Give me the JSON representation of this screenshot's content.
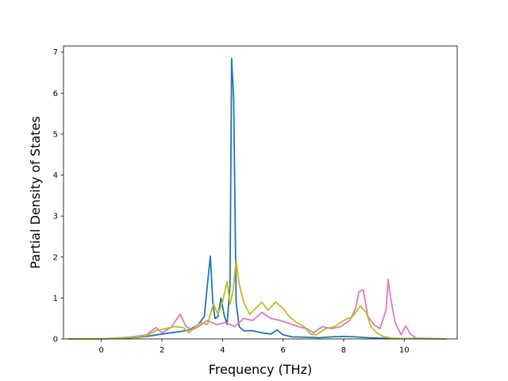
{
  "chart_data": {
    "type": "line",
    "title": "",
    "xlabel": "Frequency (THz)",
    "ylabel": "Partial Density of States",
    "xlim": [
      -1.25,
      11.75
    ],
    "ylim": [
      0,
      7.15
    ],
    "xticks": [
      0,
      2,
      4,
      6,
      8,
      10
    ],
    "yticks": [
      0,
      1,
      2,
      3,
      4,
      5,
      6,
      7
    ],
    "grid": false,
    "legend": "none",
    "series": [
      {
        "color": "#1f77b4",
        "points": [
          [
            -1.1,
            0
          ],
          [
            0,
            0
          ],
          [
            0.5,
            0.01
          ],
          [
            1,
            0.03
          ],
          [
            1.5,
            0.06
          ],
          [
            2,
            0.12
          ],
          [
            2.3,
            0.15
          ],
          [
            2.6,
            0.18
          ],
          [
            2.9,
            0.22
          ],
          [
            3.2,
            0.35
          ],
          [
            3.4,
            0.55
          ],
          [
            3.5,
            1.3
          ],
          [
            3.6,
            2.02
          ],
          [
            3.68,
            0.9
          ],
          [
            3.75,
            0.5
          ],
          [
            3.85,
            0.55
          ],
          [
            3.95,
            1.0
          ],
          [
            4.05,
            0.6
          ],
          [
            4.15,
            0.35
          ],
          [
            4.25,
            1.3
          ],
          [
            4.3,
            6.85
          ],
          [
            4.37,
            5.85
          ],
          [
            4.45,
            0.9
          ],
          [
            4.55,
            0.3
          ],
          [
            4.7,
            0.2
          ],
          [
            5.0,
            0.2
          ],
          [
            5.3,
            0.15
          ],
          [
            5.6,
            0.12
          ],
          [
            5.8,
            0.22
          ],
          [
            6.0,
            0.1
          ],
          [
            6.3,
            0.05
          ],
          [
            6.8,
            0.04
          ],
          [
            7.2,
            0.03
          ],
          [
            7.6,
            0.05
          ],
          [
            8.0,
            0.06
          ],
          [
            8.4,
            0.05
          ],
          [
            8.8,
            0.03
          ],
          [
            9.2,
            0.02
          ],
          [
            9.6,
            0.01
          ],
          [
            10.2,
            0.01
          ],
          [
            11.4,
            0
          ]
        ]
      },
      {
        "color": "#e377c2",
        "points": [
          [
            -1.1,
            0
          ],
          [
            0,
            0
          ],
          [
            0.5,
            0.02
          ],
          [
            1,
            0.05
          ],
          [
            1.5,
            0.1
          ],
          [
            1.8,
            0.28
          ],
          [
            2.0,
            0.15
          ],
          [
            2.3,
            0.28
          ],
          [
            2.6,
            0.6
          ],
          [
            2.8,
            0.3
          ],
          [
            3.0,
            0.22
          ],
          [
            3.2,
            0.3
          ],
          [
            3.5,
            0.45
          ],
          [
            3.8,
            0.35
          ],
          [
            4.1,
            0.4
          ],
          [
            4.4,
            0.3
          ],
          [
            4.7,
            0.5
          ],
          [
            5.0,
            0.45
          ],
          [
            5.3,
            0.65
          ],
          [
            5.6,
            0.5
          ],
          [
            5.9,
            0.45
          ],
          [
            6.2,
            0.38
          ],
          [
            6.5,
            0.3
          ],
          [
            6.8,
            0.25
          ],
          [
            7.0,
            0.15
          ],
          [
            7.3,
            0.3
          ],
          [
            7.6,
            0.25
          ],
          [
            7.9,
            0.3
          ],
          [
            8.2,
            0.45
          ],
          [
            8.4,
            0.75
          ],
          [
            8.5,
            1.15
          ],
          [
            8.65,
            1.2
          ],
          [
            8.8,
            0.55
          ],
          [
            9.0,
            0.35
          ],
          [
            9.2,
            0.25
          ],
          [
            9.4,
            0.7
          ],
          [
            9.47,
            1.45
          ],
          [
            9.55,
            1.0
          ],
          [
            9.7,
            0.4
          ],
          [
            9.9,
            0.1
          ],
          [
            10.05,
            0.32
          ],
          [
            10.2,
            0.12
          ],
          [
            10.4,
            0.02
          ],
          [
            11.4,
            0
          ]
        ]
      },
      {
        "color": "#bcbd22",
        "points": [
          [
            -1.1,
            0
          ],
          [
            0,
            0
          ],
          [
            0.5,
            0.02
          ],
          [
            1,
            0.04
          ],
          [
            1.5,
            0.08
          ],
          [
            1.8,
            0.2
          ],
          [
            2.1,
            0.25
          ],
          [
            2.4,
            0.3
          ],
          [
            2.7,
            0.28
          ],
          [
            2.9,
            0.15
          ],
          [
            3.1,
            0.3
          ],
          [
            3.3,
            0.4
          ],
          [
            3.5,
            0.35
          ],
          [
            3.7,
            0.85
          ],
          [
            3.85,
            0.6
          ],
          [
            4.0,
            0.9
          ],
          [
            4.15,
            1.4
          ],
          [
            4.25,
            0.85
          ],
          [
            4.35,
            1.2
          ],
          [
            4.45,
            1.9
          ],
          [
            4.55,
            1.35
          ],
          [
            4.7,
            0.9
          ],
          [
            4.9,
            0.6
          ],
          [
            5.1,
            0.75
          ],
          [
            5.3,
            0.9
          ],
          [
            5.5,
            0.7
          ],
          [
            5.75,
            0.9
          ],
          [
            6.0,
            0.75
          ],
          [
            6.2,
            0.55
          ],
          [
            6.45,
            0.4
          ],
          [
            6.7,
            0.3
          ],
          [
            6.9,
            0.12
          ],
          [
            7.1,
            0.1
          ],
          [
            7.4,
            0.25
          ],
          [
            7.7,
            0.3
          ],
          [
            8.0,
            0.45
          ],
          [
            8.3,
            0.55
          ],
          [
            8.55,
            0.8
          ],
          [
            8.75,
            0.65
          ],
          [
            8.9,
            0.3
          ],
          [
            9.1,
            0.15
          ],
          [
            9.3,
            0.06
          ],
          [
            9.6,
            0.02
          ],
          [
            10.0,
            0.01
          ],
          [
            11.4,
            0
          ]
        ]
      }
    ]
  }
}
